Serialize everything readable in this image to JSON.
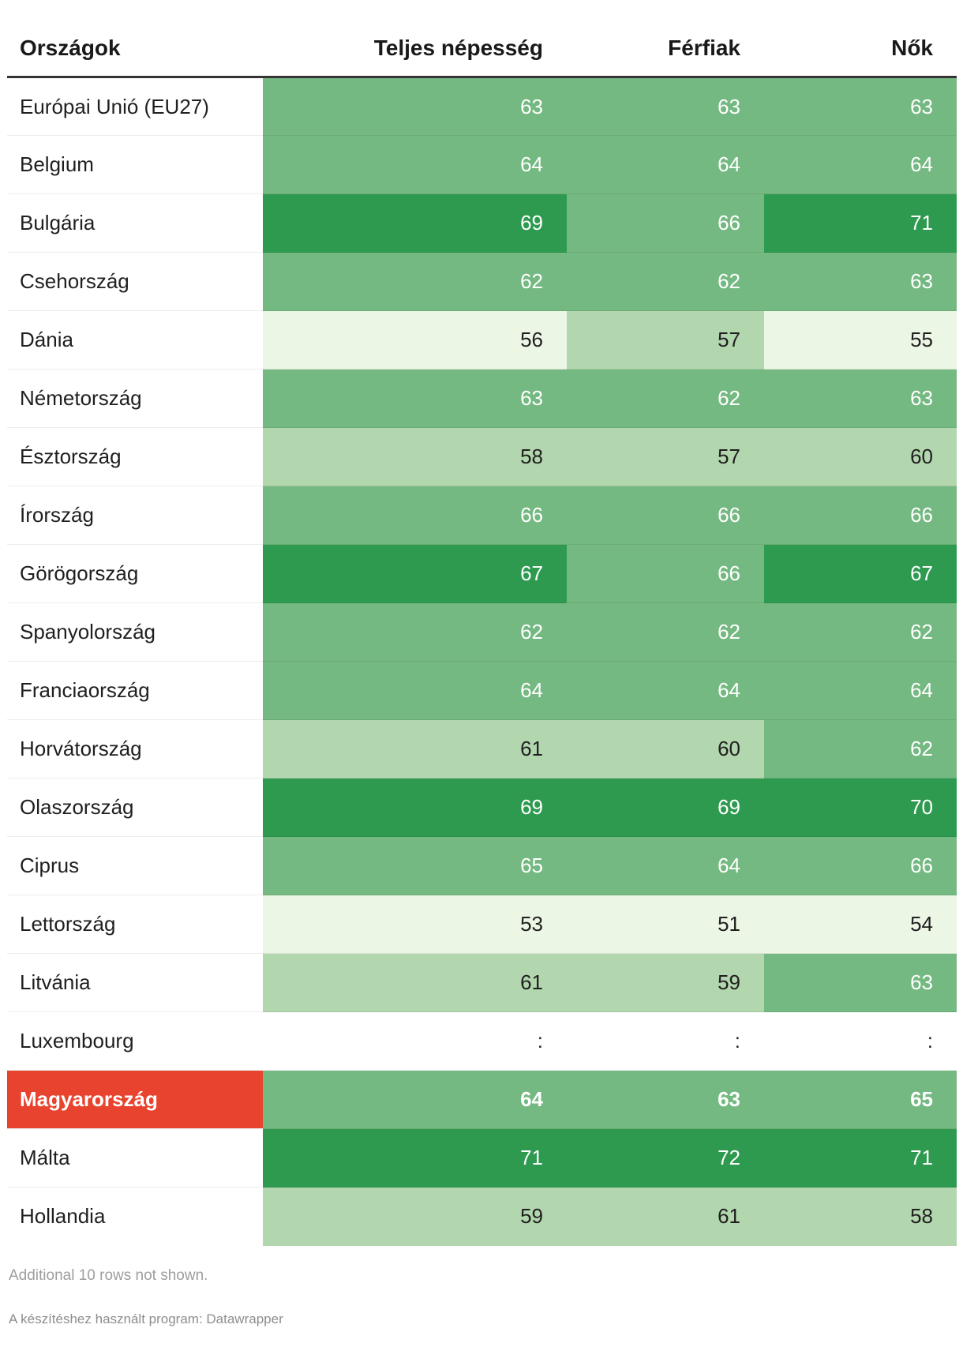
{
  "table": {
    "headers": {
      "country": "Országok",
      "total": "Teljes népesség",
      "men": "Férfiak",
      "women": "Nők"
    },
    "rows": [
      {
        "name": "Európai Unió (EU27)",
        "values": [
          "63",
          "63",
          "63"
        ],
        "highlight": false
      },
      {
        "name": "Belgium",
        "values": [
          "64",
          "64",
          "64"
        ],
        "highlight": false
      },
      {
        "name": "Bulgária",
        "values": [
          "69",
          "66",
          "71"
        ],
        "highlight": false
      },
      {
        "name": "Csehország",
        "values": [
          "62",
          "62",
          "63"
        ],
        "highlight": false
      },
      {
        "name": "Dánia",
        "values": [
          "56",
          "57",
          "55"
        ],
        "highlight": false
      },
      {
        "name": "Németország",
        "values": [
          "63",
          "62",
          "63"
        ],
        "highlight": false
      },
      {
        "name": "Észtország",
        "values": [
          "58",
          "57",
          "60"
        ],
        "highlight": false
      },
      {
        "name": "Írország",
        "values": [
          "66",
          "66",
          "66"
        ],
        "highlight": false
      },
      {
        "name": "Görögország",
        "values": [
          "67",
          "66",
          "67"
        ],
        "highlight": false
      },
      {
        "name": "Spanyolország",
        "values": [
          "62",
          "62",
          "62"
        ],
        "highlight": false
      },
      {
        "name": "Franciaország",
        "values": [
          "64",
          "64",
          "64"
        ],
        "highlight": false
      },
      {
        "name": "Horvátország",
        "values": [
          "61",
          "60",
          "62"
        ],
        "highlight": false
      },
      {
        "name": "Olaszország",
        "values": [
          "69",
          "69",
          "70"
        ],
        "highlight": false
      },
      {
        "name": "Ciprus",
        "values": [
          "65",
          "64",
          "66"
        ],
        "highlight": false
      },
      {
        "name": "Lettország",
        "values": [
          "53",
          "51",
          "54"
        ],
        "highlight": false
      },
      {
        "name": "Litvánia",
        "values": [
          "61",
          "59",
          "63"
        ],
        "highlight": false
      },
      {
        "name": "Luxembourg",
        "values": [
          ":",
          ":",
          ":"
        ],
        "highlight": false
      },
      {
        "name": "Magyarország",
        "values": [
          "64",
          "63",
          "65"
        ],
        "highlight": true
      },
      {
        "name": "Málta",
        "values": [
          "71",
          "72",
          "71"
        ],
        "highlight": false
      },
      {
        "name": "Hollandia",
        "values": [
          "59",
          "61",
          "58"
        ],
        "highlight": false
      }
    ],
    "note": "Additional 10 rows not shown.",
    "attribution": "A készítéshez használt program: Datawrapper"
  },
  "colors": {
    "scale": [
      {
        "min": 0,
        "max": 56,
        "bg": "#ecf6e5",
        "text": "#1f1f1f"
      },
      {
        "min": 57,
        "max": 61,
        "bg": "#b2d6ad",
        "text": "#1f1f1f"
      },
      {
        "min": 62,
        "max": 66,
        "bg": "#74b981",
        "text": "#ffffff"
      },
      {
        "min": 67,
        "max": 100,
        "bg": "#2e9a50",
        "text": "#ffffff"
      }
    ],
    "empty": "#ffffff",
    "empty_text": "#1f1f1f",
    "highlight_label_bg": "#e8432e",
    "highlight_label_text": "#ffffff",
    "header_border": "#333333"
  },
  "chart_data": {
    "type": "table",
    "title": "",
    "categories": [
      "Európai Unió (EU27)",
      "Belgium",
      "Bulgária",
      "Csehország",
      "Dánia",
      "Németország",
      "Észtország",
      "Írország",
      "Görögország",
      "Spanyolország",
      "Franciaország",
      "Horvátország",
      "Olaszország",
      "Ciprus",
      "Lettország",
      "Litvánia",
      "Luxembourg",
      "Magyarország",
      "Málta",
      "Hollandia"
    ],
    "series": [
      {
        "name": "Teljes népesség",
        "values": [
          63,
          64,
          69,
          62,
          56,
          63,
          58,
          66,
          67,
          62,
          64,
          61,
          69,
          65,
          53,
          61,
          null,
          64,
          71,
          59
        ]
      },
      {
        "name": "Férfiak",
        "values": [
          63,
          64,
          66,
          62,
          57,
          62,
          57,
          66,
          66,
          62,
          64,
          60,
          69,
          64,
          51,
          59,
          null,
          63,
          72,
          61
        ]
      },
      {
        "name": "Nők",
        "values": [
          63,
          64,
          71,
          63,
          55,
          63,
          60,
          66,
          67,
          62,
          64,
          62,
          70,
          66,
          54,
          63,
          null,
          65,
          71,
          58
        ]
      }
    ],
    "missing_value_display": ":",
    "highlight_row": "Magyarország",
    "color_legend": "green heatmap: <=56 very light, 57-61 light, 62-66 medium, >=67 dark",
    "note": "Additional 10 rows not shown."
  }
}
